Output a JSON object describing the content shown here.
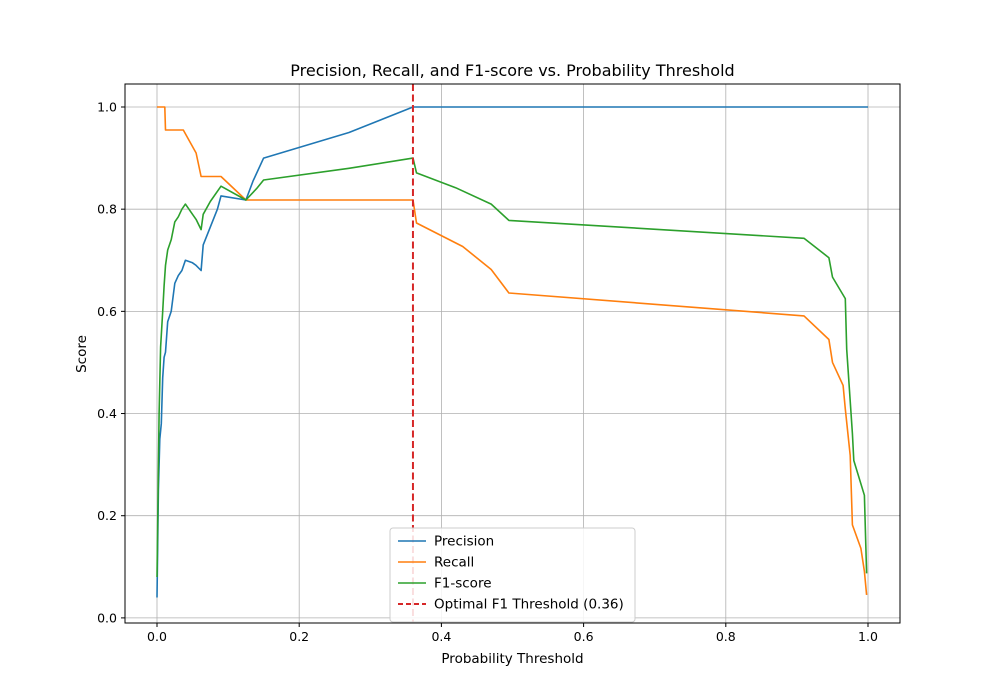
{
  "chart_data": {
    "type": "line",
    "title": "Precision, Recall, and F1-score vs. Probability Threshold",
    "xlabel": "Probability Threshold",
    "ylabel": "Score",
    "xlim": [
      -0.045,
      1.045
    ],
    "ylim": [
      -0.01,
      1.045
    ],
    "xticks": [
      0.0,
      0.2,
      0.4,
      0.6,
      0.8,
      1.0
    ],
    "xtick_labels": [
      "0.0",
      "0.2",
      "0.4",
      "0.6",
      "0.8",
      "1.0"
    ],
    "yticks": [
      0.0,
      0.2,
      0.4,
      0.6,
      0.8,
      1.0
    ],
    "ytick_labels": [
      "0.0",
      "0.2",
      "0.4",
      "0.6",
      "0.8",
      "1.0"
    ],
    "grid": true,
    "legend_position": "bottom-center",
    "series": [
      {
        "name": "Precision",
        "color": "#1f77b4",
        "x": [
          0.0,
          0.002,
          0.004,
          0.006,
          0.008,
          0.01,
          0.012,
          0.015,
          0.02,
          0.025,
          0.03,
          0.035,
          0.04,
          0.05,
          0.055,
          0.062,
          0.065,
          0.075,
          0.085,
          0.09,
          0.125,
          0.135,
          0.15,
          0.27,
          0.36,
          0.37,
          0.5,
          0.6,
          0.8,
          0.95,
          1.0
        ],
        "y": [
          0.04,
          0.25,
          0.35,
          0.38,
          0.47,
          0.51,
          0.52,
          0.58,
          0.6,
          0.655,
          0.67,
          0.68,
          0.7,
          0.695,
          0.69,
          0.68,
          0.73,
          0.765,
          0.8,
          0.826,
          0.818,
          0.855,
          0.9,
          0.95,
          1.0,
          1.0,
          1.0,
          1.0,
          1.0,
          1.0,
          1.0
        ]
      },
      {
        "name": "Recall",
        "color": "#ff7f0e",
        "x": [
          0.0,
          0.011,
          0.012,
          0.037,
          0.055,
          0.062,
          0.09,
          0.125,
          0.36,
          0.365,
          0.43,
          0.47,
          0.495,
          0.91,
          0.945,
          0.95,
          0.965,
          0.968,
          0.975,
          0.978,
          0.99,
          0.995,
          0.998
        ],
        "y": [
          1.0,
          1.0,
          0.955,
          0.955,
          0.91,
          0.864,
          0.864,
          0.818,
          0.818,
          0.773,
          0.727,
          0.682,
          0.636,
          0.591,
          0.545,
          0.5,
          0.455,
          0.409,
          0.318,
          0.182,
          0.136,
          0.091,
          0.045
        ]
      },
      {
        "name": "F1-score",
        "color": "#2ca02c",
        "x": [
          0.0,
          0.003,
          0.005,
          0.008,
          0.01,
          0.012,
          0.015,
          0.02,
          0.025,
          0.03,
          0.035,
          0.04,
          0.05,
          0.055,
          0.062,
          0.065,
          0.075,
          0.09,
          0.125,
          0.14,
          0.15,
          0.27,
          0.36,
          0.365,
          0.42,
          0.47,
          0.495,
          0.91,
          0.945,
          0.95,
          0.968,
          0.97,
          0.978,
          0.98,
          0.995,
          0.998
        ],
        "y": [
          0.08,
          0.4,
          0.53,
          0.6,
          0.65,
          0.69,
          0.72,
          0.74,
          0.775,
          0.785,
          0.8,
          0.81,
          0.79,
          0.78,
          0.76,
          0.79,
          0.815,
          0.845,
          0.818,
          0.84,
          0.857,
          0.88,
          0.9,
          0.871,
          0.842,
          0.81,
          0.778,
          0.743,
          0.705,
          0.667,
          0.625,
          0.526,
          0.361,
          0.308,
          0.24,
          0.087
        ]
      }
    ],
    "reference_lines": [
      {
        "name": "Optimal F1 Threshold (0.36)",
        "orientation": "vertical",
        "x": 0.36,
        "color": "#d62728",
        "style": "dashed"
      }
    ]
  }
}
